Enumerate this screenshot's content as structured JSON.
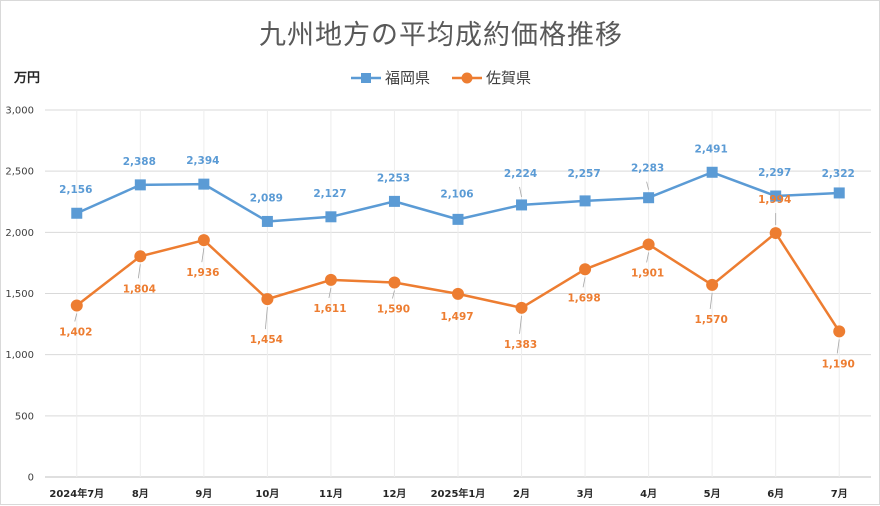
{
  "chart_data": {
    "type": "line",
    "title": "九州地方の平均成約価格推移",
    "ylabel": "万円",
    "xlabel": "",
    "ylim": [
      0,
      3000
    ],
    "yticks": [
      0,
      500,
      1000,
      1500,
      2000,
      2500,
      3000
    ],
    "ytick_labels": [
      "0",
      "500",
      "1,000",
      "1,500",
      "2,000",
      "2,500",
      "3,000"
    ],
    "grid": true,
    "legend_position": "top-center",
    "categories": [
      "2024年7月",
      "8月",
      "9月",
      "10月",
      "11月",
      "12月",
      "2025年1月",
      "2月",
      "3月",
      "4月",
      "5月",
      "6月",
      "7月"
    ],
    "series": [
      {
        "name": "福岡県",
        "color": "#5b9bd5",
        "marker": "square",
        "values": [
          2156,
          2388,
          2394,
          2089,
          2127,
          2253,
          2106,
          2224,
          2257,
          2283,
          2491,
          2297,
          2322
        ],
        "labels": [
          "2,156",
          "2,388",
          "2,394",
          "2,089",
          "2,127",
          "2,253",
          "2,106",
          "2,224",
          "2,257",
          "2,283",
          "2,491",
          "2,297",
          "2,322"
        ]
      },
      {
        "name": "佐賀県",
        "color": "#ed7d31",
        "marker": "circle",
        "values": [
          1402,
          1804,
          1936,
          1454,
          1611,
          1590,
          1497,
          1383,
          1698,
          1901,
          1570,
          1994,
          1190
        ],
        "labels": [
          "1,402",
          "1,804",
          "1,936",
          "1,454",
          "1,611",
          "1,590",
          "1,497",
          "1,383",
          "1,698",
          "1,901",
          "1,570",
          "1,994",
          "1,190"
        ]
      }
    ]
  }
}
